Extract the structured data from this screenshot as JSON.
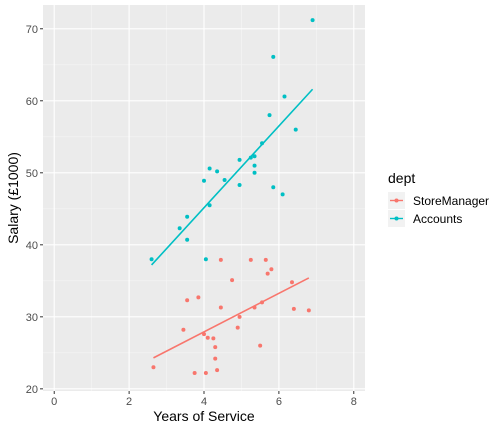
{
  "chart_data": {
    "type": "scatter",
    "xlabel": "Years of Service",
    "ylabel": "Salary (£1000)",
    "xlim": [
      -0.3,
      8.3
    ],
    "ylim": [
      19.7,
      73.3
    ],
    "x_ticks": [
      0,
      2,
      4,
      6,
      8
    ],
    "y_ticks": [
      20,
      30,
      40,
      50,
      60,
      70
    ],
    "grid": true,
    "legend": {
      "title": "dept",
      "position": "right"
    },
    "series": [
      {
        "name": "StoreManager",
        "color": "#F8766D",
        "points": [
          [
            2.65,
            23.0
          ],
          [
            3.45,
            28.2
          ],
          [
            3.55,
            32.3
          ],
          [
            3.75,
            22.2
          ],
          [
            3.85,
            32.7
          ],
          [
            4.0,
            27.6
          ],
          [
            4.05,
            22.2
          ],
          [
            4.1,
            27.1
          ],
          [
            4.25,
            27.0
          ],
          [
            4.3,
            25.8
          ],
          [
            4.3,
            24.2
          ],
          [
            4.35,
            22.6
          ],
          [
            4.45,
            37.9
          ],
          [
            4.45,
            31.3
          ],
          [
            4.75,
            35.1
          ],
          [
            4.9,
            28.5
          ],
          [
            4.95,
            30.0
          ],
          [
            5.25,
            37.9
          ],
          [
            5.35,
            31.3
          ],
          [
            5.5,
            26.0
          ],
          [
            5.55,
            32.0
          ],
          [
            5.65,
            37.9
          ],
          [
            5.7,
            36.0
          ],
          [
            5.8,
            36.6
          ],
          [
            6.35,
            34.8
          ],
          [
            6.4,
            31.1
          ],
          [
            6.8,
            30.9
          ]
        ],
        "trend": [
          [
            2.65,
            24.3
          ],
          [
            6.8,
            35.4
          ]
        ]
      },
      {
        "name": "Accounts",
        "color": "#00BFC4",
        "points": [
          [
            2.6,
            38.0
          ],
          [
            3.35,
            42.3
          ],
          [
            3.55,
            43.9
          ],
          [
            3.55,
            40.7
          ],
          [
            4.0,
            48.9
          ],
          [
            4.05,
            38.0
          ],
          [
            4.15,
            45.5
          ],
          [
            4.15,
            50.6
          ],
          [
            4.35,
            50.2
          ],
          [
            4.55,
            49.0
          ],
          [
            4.95,
            48.3
          ],
          [
            4.95,
            51.8
          ],
          [
            5.25,
            52.1
          ],
          [
            5.35,
            52.3
          ],
          [
            5.35,
            51.0
          ],
          [
            5.35,
            50.0
          ],
          [
            5.55,
            54.1
          ],
          [
            5.75,
            58.0
          ],
          [
            5.85,
            48.0
          ],
          [
            5.85,
            66.1
          ],
          [
            6.1,
            47.0
          ],
          [
            6.15,
            60.6
          ],
          [
            6.45,
            56.0
          ],
          [
            6.9,
            71.2
          ]
        ],
        "trend": [
          [
            2.6,
            37.2
          ],
          [
            6.9,
            61.6
          ]
        ]
      }
    ]
  }
}
